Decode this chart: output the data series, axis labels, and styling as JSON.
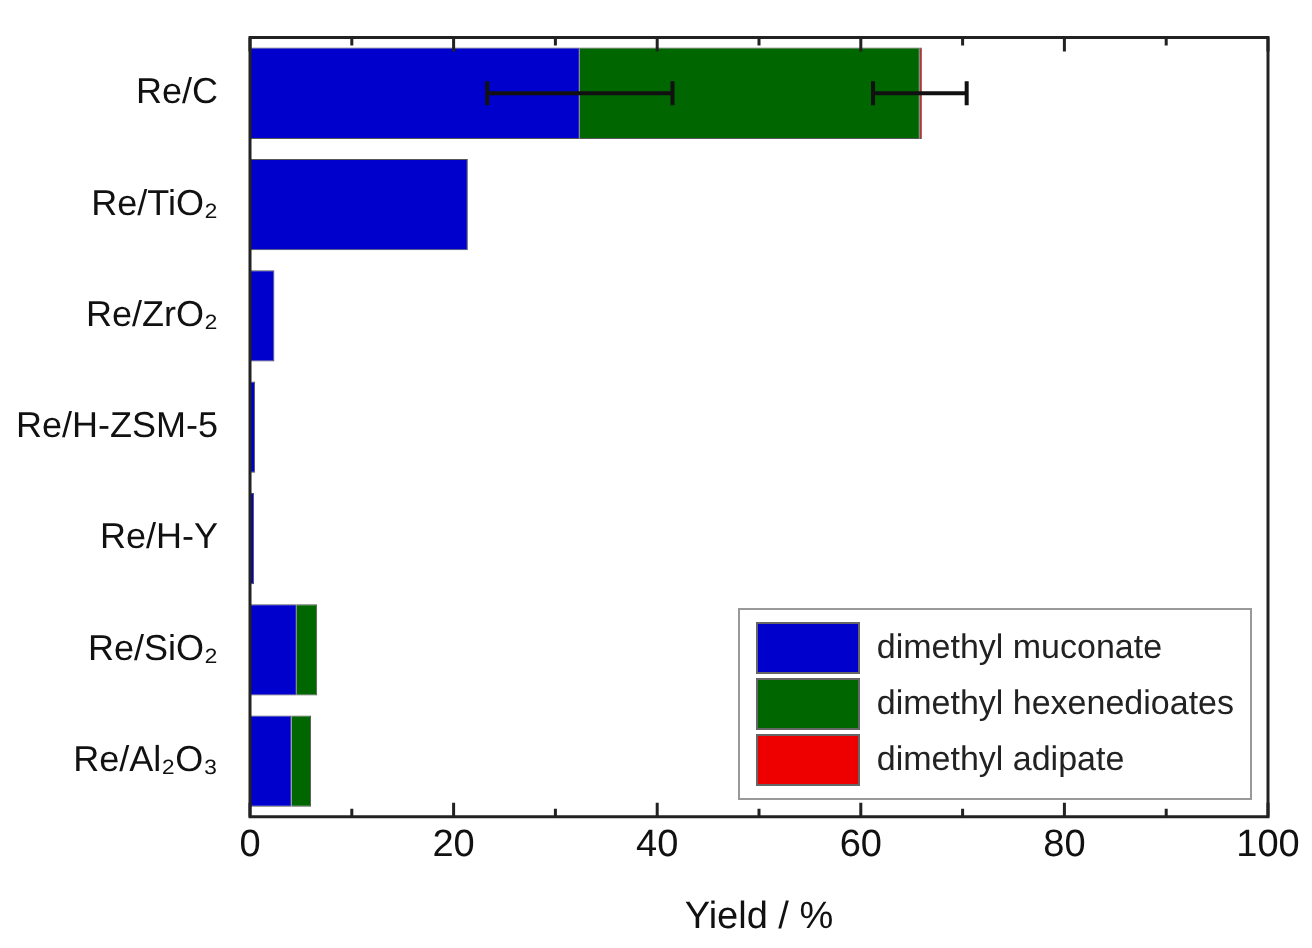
{
  "chart_data": {
    "type": "bar",
    "orientation": "horizontal",
    "stacked": true,
    "xlabel": "Yield / %",
    "categories": [
      "Re/C",
      "Re/TiO₂",
      "Re/ZrO₂",
      "Re/H-ZSM-5",
      "Re/H-Y",
      "Re/SiO₂",
      "Re/Al₂O₃"
    ],
    "series": [
      {
        "name": "dimethyl muconate",
        "color": "#0000cc",
        "values": [
          32.4,
          21.4,
          2.4,
          0.5,
          0.4,
          4.6,
          4.1
        ],
        "errors": [
          9.1,
          null,
          null,
          null,
          null,
          null,
          null
        ]
      },
      {
        "name": "dimethyl hexenedioates",
        "color": "#006600",
        "values": [
          33.4,
          0,
          0,
          0,
          0,
          2.0,
          1.9
        ],
        "errors": [
          4.6,
          null,
          null,
          null,
          null,
          null,
          null
        ]
      },
      {
        "name": "dimethyl adipate",
        "color": "#ee0000",
        "values": [
          0.2,
          0,
          0,
          0,
          0,
          0,
          0
        ]
      }
    ],
    "xlim": [
      0,
      100
    ],
    "xticks": [
      0,
      {
        "value": 10,
        "label": null
      },
      20,
      {
        "value": 30,
        "label": null
      },
      40,
      {
        "value": 50,
        "label": null
      },
      60,
      {
        "value": 70,
        "label": null
      },
      80,
      {
        "value": 90,
        "label": null
      },
      100
    ],
    "grid": false,
    "legend": "bottom right"
  }
}
